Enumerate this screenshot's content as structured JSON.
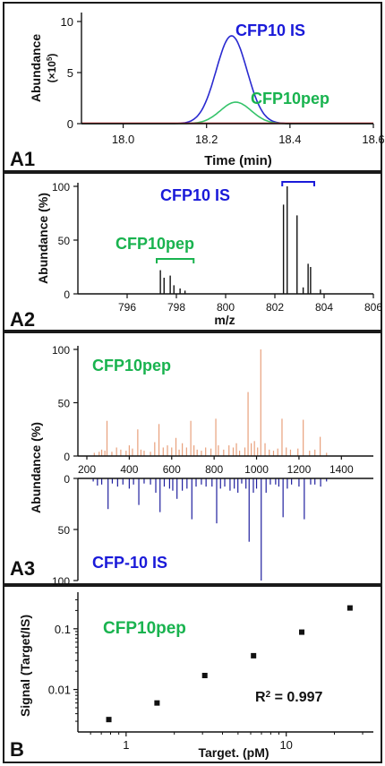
{
  "colors": {
    "blue": "#1a1ad9",
    "green": "#19b34f",
    "salmon": "#e8a07c",
    "navy": "#1f1f9e",
    "red": "#d01818",
    "black": "#111111"
  },
  "chart_data": [
    {
      "panel": "A1",
      "type": "line",
      "xlabel": "Time (min)",
      "ylabel": "Abundance",
      "ylabel_unit": "(×10⁵)",
      "xlim": [
        17.9,
        18.6
      ],
      "ylim": [
        0,
        10
      ],
      "x_ticks": [
        18.0,
        18.2,
        18.4,
        18.6
      ],
      "x_tick_labels": [
        "18.0",
        "18.2",
        "18.4",
        "18.6"
      ],
      "y_ticks": [
        0,
        5,
        10
      ],
      "y_tick_labels": [
        "0",
        "5",
        "10"
      ],
      "series": [
        {
          "name": "CFP10 IS",
          "color": "#2a2ad0",
          "peak_x": 18.26,
          "peak_y": 8.6,
          "sigma": 0.037
        },
        {
          "name": "CFP10pep",
          "color": "#35c36a",
          "peak_x": 18.27,
          "peak_y": 2.1,
          "sigma": 0.037
        },
        {
          "name": "",
          "color": "#d01818",
          "peak_x": 18.26,
          "peak_y": 0.0,
          "sigma": 0.04
        }
      ]
    },
    {
      "panel": "A2",
      "type": "bar",
      "xlabel": "m/z",
      "ylabel": "Abundance (%)",
      "xlim": [
        794,
        806
      ],
      "ylim": [
        0,
        100
      ],
      "x_ticks": [
        796,
        798,
        800,
        802,
        804,
        806
      ],
      "x_tick_labels": [
        "796",
        "798",
        "800",
        "802",
        "804",
        "806"
      ],
      "y_ticks": [
        0,
        50,
        100
      ],
      "y_tick_labels": [
        "0",
        "50",
        "100"
      ],
      "annotations": [
        {
          "text": "CFP10 IS",
          "bracket": [
            802.3,
            803.6
          ]
        },
        {
          "text": "CFP10pep",
          "bracket": [
            797.2,
            798.7
          ]
        }
      ],
      "peaks": [
        [
          797.35,
          22
        ],
        [
          797.5,
          15
        ],
        [
          797.75,
          17
        ],
        [
          797.9,
          8
        ],
        [
          798.15,
          5
        ],
        [
          798.35,
          3
        ],
        [
          802.35,
          83
        ],
        [
          802.5,
          100
        ],
        [
          802.9,
          73
        ],
        [
          803.15,
          6
        ],
        [
          803.35,
          28
        ],
        [
          803.45,
          25
        ],
        [
          803.85,
          4
        ]
      ]
    },
    {
      "panel": "A3",
      "type": "bar",
      "ylabel": "Abundance (%)",
      "xlim": [
        200,
        1500
      ],
      "x_ticks": [
        200,
        400,
        600,
        800,
        1000,
        1200,
        1400
      ],
      "x_tick_labels": [
        "200",
        "400",
        "600",
        "800",
        "1000",
        "1200",
        "1400"
      ],
      "y_ticks_top": [
        0,
        50,
        100
      ],
      "y_tick_labels_top": [
        "0",
        "50",
        "100"
      ],
      "y_ticks_bottom": [
        0,
        50,
        100
      ],
      "y_tick_labels_bottom": [
        "0",
        "50",
        "100"
      ],
      "top_series": {
        "name": "CFP10pep",
        "color": "#e8a07c",
        "peaks": [
          [
            235,
            3
          ],
          [
            258,
            4
          ],
          [
            270,
            6
          ],
          [
            285,
            5
          ],
          [
            295,
            33
          ],
          [
            318,
            4
          ],
          [
            340,
            8
          ],
          [
            360,
            6
          ],
          [
            385,
            5
          ],
          [
            400,
            10
          ],
          [
            415,
            7
          ],
          [
            440,
            25
          ],
          [
            455,
            6
          ],
          [
            470,
            5
          ],
          [
            500,
            4
          ],
          [
            520,
            13
          ],
          [
            540,
            30
          ],
          [
            560,
            8
          ],
          [
            580,
            10
          ],
          [
            600,
            8
          ],
          [
            620,
            17
          ],
          [
            635,
            6
          ],
          [
            650,
            12
          ],
          [
            670,
            8
          ],
          [
            690,
            33
          ],
          [
            705,
            10
          ],
          [
            720,
            6
          ],
          [
            740,
            5
          ],
          [
            760,
            8
          ],
          [
            785,
            7
          ],
          [
            808,
            35
          ],
          [
            820,
            10
          ],
          [
            845,
            6
          ],
          [
            870,
            10
          ],
          [
            890,
            8
          ],
          [
            905,
            12
          ],
          [
            920,
            5
          ],
          [
            945,
            8
          ],
          [
            960,
            60
          ],
          [
            975,
            12
          ],
          [
            990,
            14
          ],
          [
            1005,
            8
          ],
          [
            1020,
            100
          ],
          [
            1040,
            12
          ],
          [
            1060,
            6
          ],
          [
            1080,
            5
          ],
          [
            1100,
            7
          ],
          [
            1120,
            35
          ],
          [
            1140,
            8
          ],
          [
            1160,
            6
          ],
          [
            1195,
            7
          ],
          [
            1220,
            34
          ],
          [
            1250,
            5
          ],
          [
            1275,
            6
          ],
          [
            1300,
            18
          ],
          [
            1330,
            3
          ]
        ]
      },
      "bottom_series": {
        "name": "CFP-10 IS",
        "color": "#1f1f9e",
        "peaks": [
          [
            230,
            3
          ],
          [
            250,
            7
          ],
          [
            270,
            6
          ],
          [
            300,
            30
          ],
          [
            320,
            5
          ],
          [
            345,
            8
          ],
          [
            370,
            6
          ],
          [
            400,
            10
          ],
          [
            420,
            6
          ],
          [
            445,
            26
          ],
          [
            470,
            5
          ],
          [
            500,
            6
          ],
          [
            525,
            14
          ],
          [
            545,
            33
          ],
          [
            565,
            8
          ],
          [
            590,
            10
          ],
          [
            605,
            12
          ],
          [
            625,
            20
          ],
          [
            650,
            12
          ],
          [
            672,
            10
          ],
          [
            695,
            40
          ],
          [
            715,
            8
          ],
          [
            740,
            6
          ],
          [
            762,
            8
          ],
          [
            790,
            8
          ],
          [
            812,
            44
          ],
          [
            830,
            10
          ],
          [
            850,
            8
          ],
          [
            875,
            12
          ],
          [
            895,
            10
          ],
          [
            912,
            14
          ],
          [
            930,
            5
          ],
          [
            950,
            10
          ],
          [
            965,
            62
          ],
          [
            985,
            14
          ],
          [
            1000,
            10
          ],
          [
            1022,
            100
          ],
          [
            1045,
            14
          ],
          [
            1065,
            6
          ],
          [
            1090,
            6
          ],
          [
            1105,
            8
          ],
          [
            1125,
            38
          ],
          [
            1145,
            10
          ],
          [
            1165,
            6
          ],
          [
            1200,
            8
          ],
          [
            1225,
            40
          ],
          [
            1255,
            6
          ],
          [
            1275,
            6
          ],
          [
            1302,
            8
          ],
          [
            1330,
            3
          ]
        ]
      }
    },
    {
      "panel": "B",
      "type": "scatter",
      "xlabel": "Target. (pM)",
      "ylabel": "Signal (Target/IS)",
      "log_x": true,
      "log_y": true,
      "xlim": [
        0.5,
        35
      ],
      "ylim": [
        0.002,
        0.4
      ],
      "x_ticks": [
        1,
        10
      ],
      "x_tick_labels": [
        "1",
        "10"
      ],
      "y_ticks": [
        0.01,
        0.1
      ],
      "y_tick_labels": [
        "0.01",
        "0.1"
      ],
      "annotation": "CFP10pep",
      "r2_label": "R",
      "r2_sup": "2",
      "r2_value": " = 0.997",
      "points": [
        [
          0.78,
          0.0032
        ],
        [
          1.56,
          0.006
        ],
        [
          3.1,
          0.017
        ],
        [
          6.25,
          0.036
        ],
        [
          12.5,
          0.088
        ],
        [
          25,
          0.22
        ]
      ]
    }
  ],
  "labels": {
    "a1_is": "CFP10 IS",
    "a1_pep": "CFP10pep",
    "a1_exp_base": "(×10",
    "a1_exp_sup": "5",
    "a1_exp_end": ")",
    "a2_is": "CFP10 IS",
    "a2_pep": "CFP10pep",
    "a3_top": "CFP10pep",
    "a3_bottom": "CFP-10 IS",
    "panel_a1": "A1",
    "panel_a2": "A2",
    "panel_a3": "A3",
    "panel_b": "B"
  }
}
